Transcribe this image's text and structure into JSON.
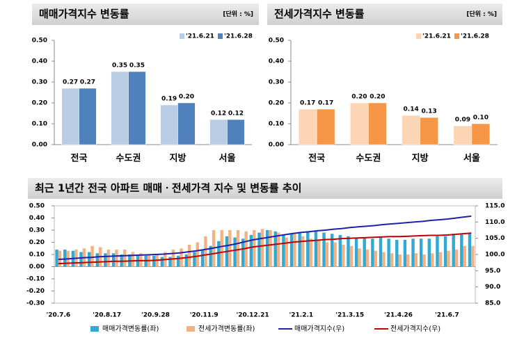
{
  "chart_data": [
    {
      "type": "bar",
      "title": "매매가격지수 변동률",
      "unit_label": "[단위 : %]",
      "categories": [
        "전국",
        "수도권",
        "지방",
        "서울"
      ],
      "series": [
        {
          "name": "'21.6.21",
          "color": "#b8cce4",
          "values": [
            0.27,
            0.35,
            0.19,
            0.12
          ],
          "value_labels": [
            "0.27",
            "0.35",
            "0.19",
            "0.12"
          ]
        },
        {
          "name": "'21.6.28",
          "color": "#4f81bd",
          "values": [
            0.27,
            0.35,
            0.2,
            0.12
          ],
          "value_labels": [
            "0.27",
            "0.35",
            "0.20",
            "0.12"
          ]
        }
      ],
      "ylim": [
        0,
        0.5
      ],
      "yticks": [
        {
          "value": 0,
          "label": "0.00"
        },
        {
          "value": 0.1,
          "label": "0.10"
        },
        {
          "value": 0.2,
          "label": "0.20"
        },
        {
          "value": 0.3,
          "label": "0.30"
        },
        {
          "value": 0.4,
          "label": "0.40"
        },
        {
          "value": 0.5,
          "label": "0.50"
        }
      ],
      "legend": "top-right"
    },
    {
      "type": "bar",
      "title": "전세가격지수 변동률",
      "unit_label": "[단위 : %]",
      "categories": [
        "전국",
        "수도권",
        "지방",
        "서울"
      ],
      "series": [
        {
          "name": "'21.6.21",
          "color": "#fcd5b5",
          "values": [
            0.17,
            0.2,
            0.14,
            0.09
          ],
          "value_labels": [
            "0.17",
            "0.20",
            "0.14",
            "0.09"
          ]
        },
        {
          "name": "'21.6.28",
          "color": "#f79646",
          "values": [
            0.17,
            0.2,
            0.13,
            0.1
          ],
          "value_labels": [
            "0.17",
            "0.20",
            "0.13",
            "0.10"
          ]
        }
      ],
      "ylim": [
        0,
        0.5
      ],
      "yticks": [
        {
          "value": 0,
          "label": "0.00"
        },
        {
          "value": 0.1,
          "label": "0.10"
        },
        {
          "value": 0.2,
          "label": "0.20"
        },
        {
          "value": 0.3,
          "label": "0.30"
        },
        {
          "value": 0.4,
          "label": "0.40"
        },
        {
          "value": 0.5,
          "label": "0.50"
        }
      ],
      "legend": "top-right"
    },
    {
      "type": "combo",
      "title": "최근 1년간 전국 아파트 매매ㆍ전세가격 지수 및 변동률 추이",
      "categories": [
        "'20.7.6",
        null,
        null,
        null,
        null,
        null,
        "'20.8.17",
        null,
        null,
        null,
        null,
        null,
        "'20.9.28",
        null,
        null,
        null,
        null,
        null,
        "'20.11.9",
        null,
        null,
        null,
        null,
        null,
        "'20.12.21",
        null,
        null,
        null,
        null,
        null,
        "'21.2.1",
        null,
        null,
        null,
        null,
        null,
        "'21.3.15",
        null,
        null,
        null,
        null,
        null,
        "'21.4.26",
        null,
        null,
        null,
        null,
        null,
        "'21.6.7",
        null,
        null,
        null
      ],
      "series": [
        {
          "name": "매매가격변동률(좌)",
          "kind": "bar",
          "color": "#31a9d2",
          "values": [
            0.14,
            0.14,
            0.13,
            0.12,
            0.12,
            0.11,
            0.11,
            0.11,
            0.1,
            0.1,
            0.1,
            0.09,
            0.09,
            0.08,
            0.08,
            0.09,
            0.1,
            0.12,
            0.14,
            0.17,
            0.21,
            0.25,
            0.24,
            0.23,
            0.26,
            0.28,
            0.3,
            0.29,
            0.26,
            0.27,
            0.28,
            0.29,
            0.29,
            0.28,
            0.27,
            0.26,
            0.25,
            0.24,
            0.24,
            0.23,
            0.24,
            0.23,
            0.22,
            0.22,
            0.23,
            0.23,
            0.23,
            0.25,
            0.25,
            0.27,
            0.27,
            0.27
          ]
        },
        {
          "name": "전세가격변동률(좌)",
          "kind": "bar",
          "color": "#f4b183",
          "values": [
            0.13,
            0.13,
            0.14,
            0.15,
            0.17,
            0.16,
            0.14,
            0.14,
            0.14,
            0.12,
            0.11,
            0.1,
            0.1,
            0.12,
            0.14,
            0.15,
            0.18,
            0.2,
            0.25,
            0.3,
            0.3,
            0.3,
            0.3,
            0.29,
            0.3,
            0.31,
            0.3,
            0.28,
            0.24,
            0.27,
            0.25,
            0.23,
            0.22,
            0.2,
            0.2,
            0.18,
            0.17,
            0.15,
            0.14,
            0.13,
            0.12,
            0.11,
            0.1,
            0.1,
            0.11,
            0.1,
            0.11,
            0.12,
            0.13,
            0.14,
            0.17,
            0.17
          ]
        },
        {
          "name": "매매가격지수(우)",
          "kind": "line",
          "axis": "y2",
          "color": "#1f1fa8",
          "values": [
            98.5,
            98.6,
            98.8,
            99.0,
            99.1,
            99.3,
            99.4,
            99.5,
            99.6,
            99.7,
            99.8,
            99.9,
            100.0,
            100.1,
            100.3,
            100.5,
            100.8,
            101.1,
            101.5,
            101.9,
            102.4,
            102.8,
            103.3,
            103.9,
            104.5,
            104.9,
            105.3,
            105.7,
            106.1,
            106.5,
            106.8,
            107.0,
            107.3,
            107.5,
            107.8,
            108.0,
            108.3,
            108.5,
            108.7,
            108.9,
            109.2,
            109.4,
            109.6,
            109.8,
            110.0,
            110.2,
            110.5,
            110.7,
            110.9,
            111.2,
            111.5,
            111.8
          ]
        },
        {
          "name": "전세가격지수(우)",
          "kind": "line",
          "axis": "y2",
          "color": "#c00000",
          "values": [
            97.2,
            97.3,
            97.4,
            97.5,
            97.6,
            97.7,
            97.8,
            97.9,
            97.9,
            98.0,
            98.1,
            98.1,
            98.2,
            98.4,
            98.6,
            98.8,
            99.1,
            99.4,
            99.8,
            100.2,
            100.6,
            101.0,
            101.4,
            101.8,
            102.3,
            102.6,
            102.9,
            103.2,
            103.5,
            103.8,
            104.0,
            104.2,
            104.4,
            104.6,
            104.7,
            104.9,
            105.0,
            105.1,
            105.2,
            105.3,
            105.4,
            105.5,
            105.5,
            105.6,
            105.7,
            105.8,
            105.9,
            105.9,
            106.0,
            106.2,
            106.4,
            106.6
          ]
        }
      ],
      "ylim": [
        -0.3,
        0.5
      ],
      "yticks": [
        {
          "value": -0.3,
          "label": "-0.30"
        },
        {
          "value": -0.2,
          "label": "-0.20"
        },
        {
          "value": -0.1,
          "label": "-0.10"
        },
        {
          "value": 0,
          "label": "0.00"
        },
        {
          "value": 0.1,
          "label": "0.10"
        },
        {
          "value": 0.2,
          "label": "0.20"
        },
        {
          "value": 0.3,
          "label": "0.30"
        },
        {
          "value": 0.4,
          "label": "0.40"
        },
        {
          "value": 0.5,
          "label": "0.50"
        }
      ],
      "y2lim": [
        85,
        115
      ],
      "y2ticks": [
        {
          "value": 85,
          "label": "85.0"
        },
        {
          "value": 90,
          "label": "90.0"
        },
        {
          "value": 95,
          "label": "95.0"
        },
        {
          "value": 100,
          "label": "100.0"
        },
        {
          "value": 105,
          "label": "105.0"
        },
        {
          "value": 110,
          "label": "110.0"
        },
        {
          "value": 115,
          "label": "115.0"
        }
      ],
      "legend": "bottom"
    }
  ]
}
